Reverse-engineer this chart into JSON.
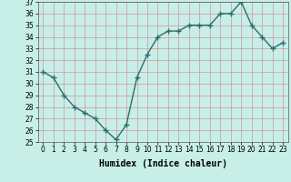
{
  "xlabel": "Humidex (Indice chaleur)",
  "x": [
    0,
    1,
    2,
    3,
    4,
    5,
    6,
    7,
    8,
    9,
    10,
    11,
    12,
    13,
    14,
    15,
    16,
    17,
    18,
    19,
    20,
    21,
    22,
    23
  ],
  "y": [
    31,
    30.5,
    29,
    28,
    27.5,
    27,
    26,
    25.2,
    26.5,
    30.5,
    32.5,
    34,
    34.5,
    34.5,
    35,
    35,
    35,
    36,
    36,
    37,
    35,
    34,
    33,
    33.5
  ],
  "line_color": "#2d6e6e",
  "marker": "+",
  "marker_size": 4,
  "bg_color": "#c8eee8",
  "grid_color": "#aaaaaa",
  "ylim": [
    25,
    37
  ],
  "yticks": [
    25,
    26,
    27,
    28,
    29,
    30,
    31,
    32,
    33,
    34,
    35,
    36,
    37
  ],
  "xticks": [
    0,
    1,
    2,
    3,
    4,
    5,
    6,
    7,
    8,
    9,
    10,
    11,
    12,
    13,
    14,
    15,
    16,
    17,
    18,
    19,
    20,
    21,
    22,
    23
  ],
  "tick_fontsize": 5.5,
  "label_fontsize": 7,
  "line_width": 1.0
}
